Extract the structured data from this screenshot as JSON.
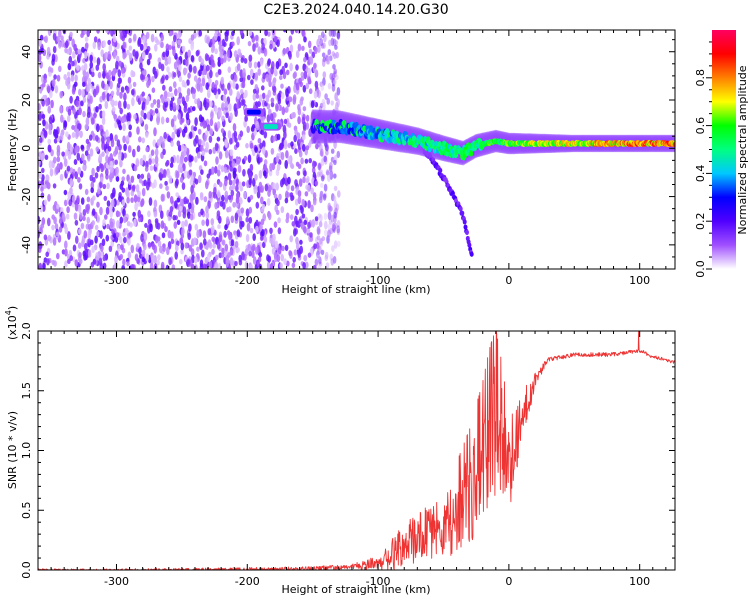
{
  "title": "C2E3.2024.040.14.20.G30",
  "chart_data": [
    {
      "type": "heatmap",
      "xlabel": "Height of straight line (km)",
      "ylabel": "Frequency (Hz)",
      "xlim": [
        -360,
        127
      ],
      "ylim": [
        -50,
        49
      ],
      "xticks": [
        -300,
        -200,
        -100,
        0,
        100
      ],
      "xtick_labels": [
        "-300",
        "-200",
        "-100",
        "0",
        "100"
      ],
      "yticks": [
        -40,
        -20,
        0,
        20,
        40
      ],
      "ytick_labels": [
        "-40",
        "-20",
        "0",
        "20",
        "40"
      ],
      "colorbar": {
        "label": "Normalized spectral amplitude",
        "range": [
          0,
          1
        ],
        "ticks": [
          0.0,
          0.2,
          0.4,
          0.6,
          0.8
        ],
        "tick_labels": [
          "0.0",
          "0.2",
          "0.4",
          "0.6",
          "0.8"
        ],
        "colormap": [
          "#ffffff",
          "#a050ff",
          "#5000ff",
          "#0000ff",
          "#00c8ff",
          "#00ff80",
          "#00ff00",
          "#ffff00",
          "#ff8000",
          "#ff0000",
          "#ff0060"
        ]
      },
      "features": [
        {
          "name": "noise",
          "x_range": [
            -360,
            -130
          ],
          "y_range": [
            -50,
            49
          ],
          "level": 0.1
        },
        {
          "name": "trace",
          "points": [
            [
              -200,
              9
            ],
            [
              -150,
              9
            ],
            [
              -130,
              9
            ],
            [
              -110,
              7
            ],
            [
              -90,
              5
            ],
            [
              -70,
              3
            ],
            [
              -50,
              0
            ],
            [
              -35,
              -2
            ],
            [
              -25,
              1
            ],
            [
              -10,
              3
            ],
            [
              0,
              2
            ],
            [
              50,
              2
            ],
            [
              100,
              2
            ],
            [
              127,
              2
            ]
          ],
          "level_start": 0.3,
          "level_end": 0.85
        },
        {
          "name": "bright-blob",
          "x": -195,
          "y": 15,
          "level": 0.3
        },
        {
          "name": "bright-blob",
          "x": -182,
          "y": 9,
          "level": 0.45
        },
        {
          "name": "branch",
          "points": [
            [
              -65,
              0
            ],
            [
              -50,
              -12
            ],
            [
              -40,
              -22
            ],
            [
              -35,
              -28
            ],
            [
              -28,
              -45
            ]
          ],
          "level": 0.2
        }
      ]
    },
    {
      "type": "line",
      "xlabel": "Height of straight line (km)",
      "ylabel": "SNR (10 * v/v)",
      "multiplier": "(x10",
      "multiplier_exp": "4",
      "xlim": [
        -360,
        127
      ],
      "ylim": [
        0,
        2.0
      ],
      "xticks": [
        -300,
        -200,
        -100,
        0,
        100
      ],
      "xtick_labels": [
        "-300",
        "-200",
        "-100",
        "0",
        "100"
      ],
      "yticks": [
        0.0,
        0.5,
        1.0,
        1.5,
        2.0
      ],
      "ytick_labels": [
        "0.0",
        "0.5",
        "1.0",
        "1.5",
        "2.0"
      ],
      "color": "#ee3333",
      "envelope": {
        "x": [
          -360,
          -300,
          -200,
          -150,
          -120,
          -100,
          -90,
          -80,
          -70,
          -60,
          -50,
          -40,
          -30,
          -20,
          -15,
          -10,
          -5,
          0,
          5,
          10,
          20,
          30,
          50,
          80,
          100,
          110,
          127
        ],
        "y": [
          0.01,
          0.01,
          0.02,
          0.03,
          0.05,
          0.12,
          0.25,
          0.4,
          0.5,
          0.55,
          0.6,
          0.75,
          1.0,
          1.35,
          1.6,
          1.75,
          1.5,
          1.15,
          1.2,
          1.4,
          1.65,
          1.78,
          1.82,
          1.82,
          1.85,
          1.8,
          1.75
        ]
      },
      "spread": {
        "x": [
          -360,
          -120,
          -100,
          -80,
          -50,
          -30,
          -10,
          0,
          10,
          20,
          30,
          127
        ],
        "y": [
          0.01,
          0.03,
          0.1,
          0.3,
          0.4,
          0.6,
          0.9,
          0.5,
          0.25,
          0.1,
          0.03,
          0.02
        ]
      }
    }
  ]
}
